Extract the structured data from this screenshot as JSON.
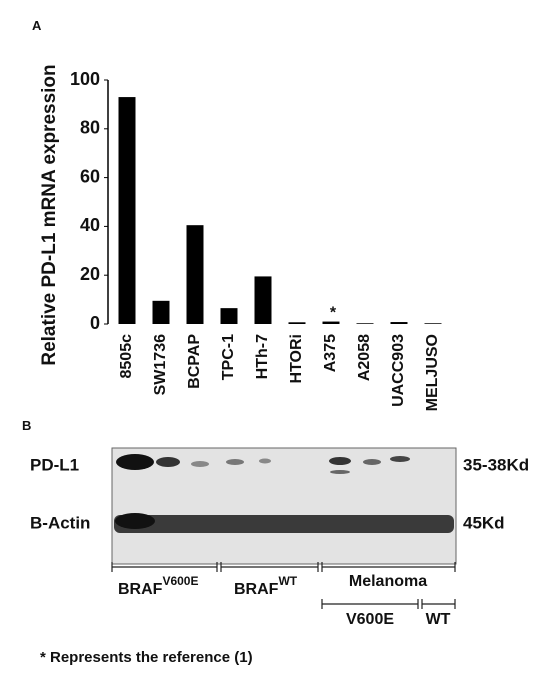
{
  "chart_data": {
    "type": "bar",
    "y_label": "Relative PD-L1 mRNA expression",
    "categories": [
      "8505c",
      "SW1736",
      "BCPAP",
      "TPC-1",
      "HTh-7",
      "HTORi",
      "A375",
      "A2058",
      "UACC903",
      "MELJUSO"
    ],
    "values": [
      93,
      9.5,
      40.5,
      6.5,
      19.5,
      0.7,
      1,
      0.3,
      0.8,
      0.3
    ],
    "color": "#000000",
    "ylim": [
      0,
      100
    ],
    "yticks": [
      0,
      20,
      40,
      60,
      80,
      100
    ],
    "grid": false,
    "annotation": "*"
  },
  "panel_labels": [
    "A",
    "B"
  ],
  "blot": {
    "rows": [
      "PD-L1",
      "B-Actin"
    ],
    "sizes": [
      "35-38Kd",
      "45Kd"
    ],
    "groups": [
      {
        "name": "BRAF",
        "sup": "V600E"
      },
      {
        "name": "BRAF",
        "sup": "WT"
      },
      {
        "name": "Melanoma"
      }
    ],
    "subgroups": [
      "V600E",
      "WT"
    ]
  },
  "footnote": "* Represents the reference (1)"
}
